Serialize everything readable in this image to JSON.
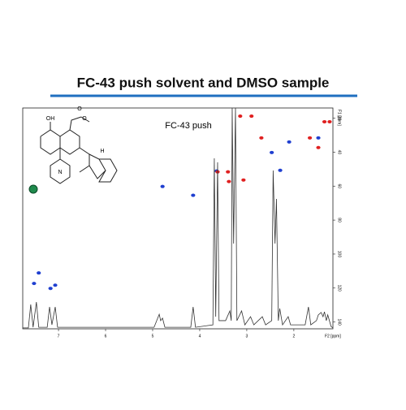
{
  "title": "FC-43 push solvent and DMSO sample",
  "structure": {
    "labels": [
      "OH",
      "O",
      "O",
      "N",
      "H"
    ]
  },
  "chart_data": [
    {
      "type": "scatter",
      "annotation": "FC-43 push",
      "xlabel": "F2 [ppm]",
      "ylabel": "F1 [ppm]",
      "xlim": [
        7.76,
        1.17
      ],
      "ylim": [
        14,
        144
      ],
      "xticks": [
        7,
        6,
        5,
        4,
        3,
        2
      ],
      "yticks": [
        20,
        40,
        60,
        80,
        100,
        120,
        140
      ],
      "series": [
        {
          "color": "#1f3fd0",
          "x": [
            7.42,
            7.52,
            7.17,
            7.07,
            4.79,
            4.14,
            3.64,
            2.47,
            2.29,
            2.1,
            1.48
          ],
          "values": [
            111.1,
            117.3,
            120.2,
            118.3,
            60.2,
            65.4,
            51.1,
            40.2,
            50.7,
            34,
            31.6
          ]
        },
        {
          "color": "#e02020",
          "x": [
            3.14,
            2.9,
            2.69,
            1.66,
            1.48,
            1.35,
            1.24,
            3.4,
            3.38,
            3.07,
            3.62
          ],
          "values": [
            18.8,
            18.8,
            31.6,
            31.6,
            37.3,
            22.1,
            22.1,
            51.6,
            57.3,
            56.4,
            51.6
          ]
        }
      ]
    },
    {
      "type": "line",
      "color": "#333333",
      "xlim": [
        7.76,
        1.17
      ],
      "ylim": [
        0,
        100
      ],
      "x": [
        7.76,
        7.64,
        7.59,
        7.54,
        7.47,
        7.42,
        7.24,
        7.19,
        7.14,
        7.07,
        7.02,
        4.97,
        4.86,
        4.83,
        4.79,
        4.74,
        4.19,
        4.14,
        4.09,
        3.72,
        3.69,
        3.66,
        3.62,
        3.59,
        3.45,
        3.36,
        3.33,
        3.31,
        3.28,
        3.24,
        3.21,
        3.11,
        3.04,
        2.92,
        2.85,
        2.67,
        2.6,
        2.47,
        2.44,
        2.4,
        2.37,
        2.33,
        2.3,
        2.24,
        2.12,
        2.07,
        1.76,
        1.69,
        1.64,
        1.52,
        1.48,
        1.42,
        1.38,
        1.35,
        1.31,
        1.28,
        1.21,
        1.17
      ],
      "values": [
        0.4,
        0.4,
        11,
        0.7,
        12.1,
        0.7,
        0.7,
        9.9,
        1.8,
        9.9,
        0.7,
        0.7,
        6.6,
        3.7,
        4.8,
        0.7,
        0.7,
        9.9,
        0.7,
        1.8,
        77.2,
        5.5,
        75.4,
        3.7,
        3.7,
        8.1,
        3.7,
        100,
        38.6,
        100,
        3.7,
        8.1,
        1.8,
        5.5,
        1.8,
        5.5,
        1.8,
        3.7,
        71.7,
        38.6,
        58.8,
        3.7,
        9.2,
        1.8,
        5.5,
        1.8,
        1.8,
        9.9,
        1.8,
        3.7,
        6.3,
        7.4,
        5.5,
        7.7,
        3.7,
        6.3,
        1.1,
        0.4
      ]
    }
  ]
}
